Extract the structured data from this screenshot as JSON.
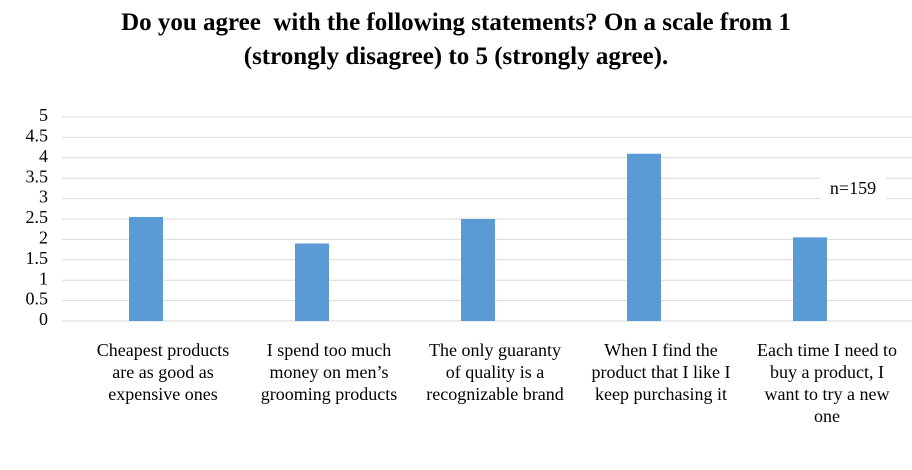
{
  "chart_data": {
    "type": "bar",
    "title": "Do you agree  with the following statements? On a scale from 1 (strongly disagree) to 5 (strongly agree).",
    "categories": [
      "Cheapest products are as good as expensive ones",
      "I spend too much money on men’s grooming products",
      "The only guaranty of quality is a recognizable brand",
      "When I find the product that I like I keep purchasing it",
      "Each time I need to buy a product, I want to try a new one"
    ],
    "values": [
      2.55,
      1.9,
      2.5,
      4.1,
      2.05
    ],
    "color": "#5b9bd5",
    "ylim": [
      0,
      5
    ],
    "yticks": [
      0,
      0.5,
      1,
      1.5,
      2,
      2.5,
      3,
      3.5,
      4,
      4.5,
      5
    ],
    "grid": true,
    "annotation": "n=159"
  }
}
